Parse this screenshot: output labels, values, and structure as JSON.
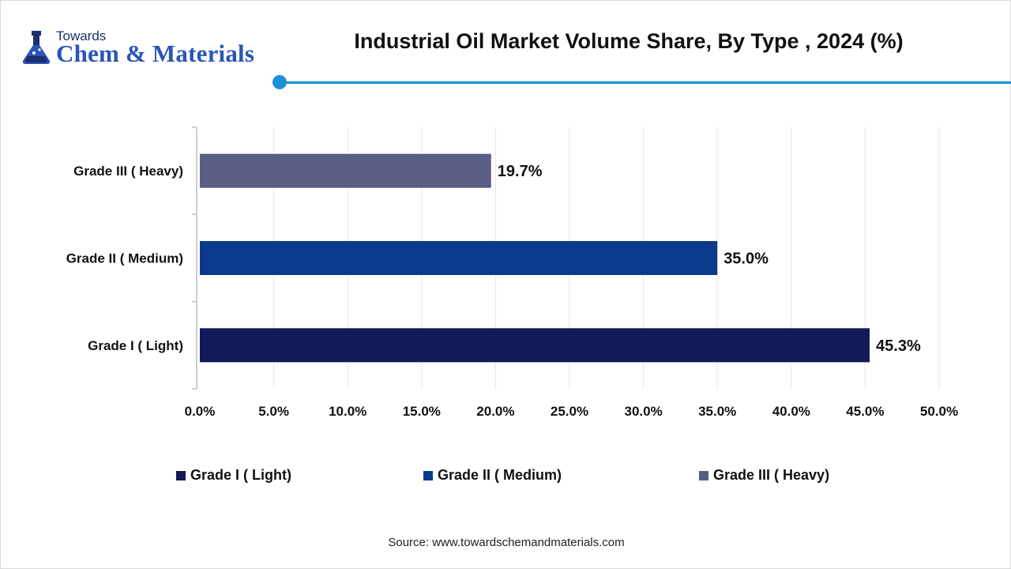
{
  "logo": {
    "small": "Towards",
    "big": "Chem & Materials"
  },
  "colors": {
    "accent": "#1f8fd6",
    "grid": "#e6e6e6",
    "axis": "#bfbfbf"
  },
  "chart_data": {
    "type": "bar",
    "orientation": "horizontal",
    "title": "Industrial Oil Market Volume Share, By Type , 2024 (%)",
    "categories": [
      "Grade III ( Heavy)",
      "Grade II ( Medium)",
      "Grade I ( Light)"
    ],
    "values": [
      19.7,
      35.0,
      45.3
    ],
    "value_labels": [
      "19.7%",
      "35.0%",
      "45.3%"
    ],
    "colors": [
      "#5a5d84",
      "#0b3a8c",
      "#121a57"
    ],
    "xlim": [
      0,
      50
    ],
    "xticks": [
      "0.0%",
      "5.0%",
      "10.0%",
      "15.0%",
      "20.0%",
      "25.0%",
      "30.0%",
      "35.0%",
      "40.0%",
      "45.0%",
      "50.0%"
    ],
    "grid": true,
    "legend_position": "bottom",
    "legend": [
      {
        "label": "Grade I ( Light)",
        "color": "#121a57"
      },
      {
        "label": "Grade II ( Medium)",
        "color": "#0b3a8c"
      },
      {
        "label": "Grade III ( Heavy)",
        "color": "#5a5d84"
      }
    ]
  },
  "source": "Source: www.towardschemandmaterials.com"
}
